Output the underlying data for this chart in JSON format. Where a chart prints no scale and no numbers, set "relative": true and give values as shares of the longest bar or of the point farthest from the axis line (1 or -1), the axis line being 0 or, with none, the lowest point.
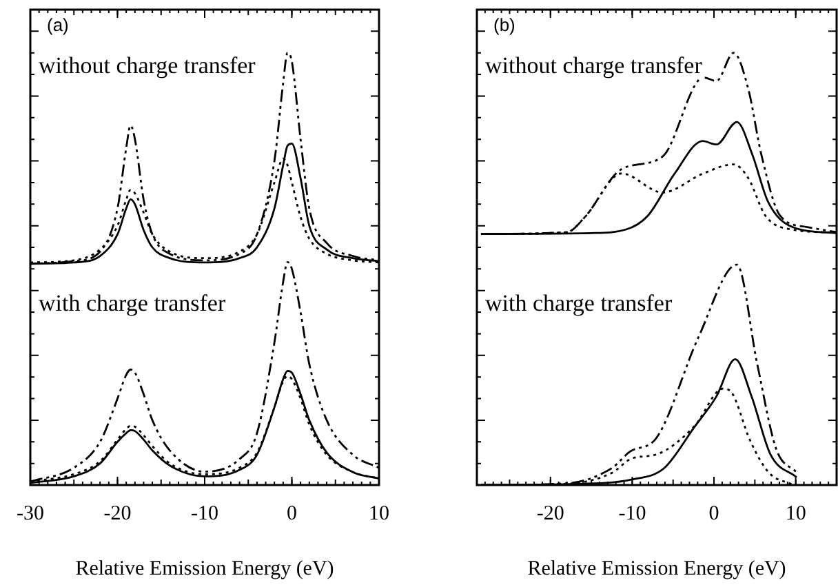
{
  "chart_data": [
    {
      "type": "line",
      "relative": true,
      "xlabel": "Relative Emission Energy (eV)",
      "xlim": [
        -30,
        10
      ],
      "xticks": [
        -30,
        -20,
        -10,
        0,
        10
      ],
      "grid": false,
      "legend": false,
      "tick_labels": "x",
      "marker": "none",
      "annotations": [
        "(a)",
        "without charge transfer",
        "with charge transfer"
      ],
      "x": [
        -30,
        -25,
        -22,
        -20,
        -19,
        -18.5,
        -18,
        -17,
        -16,
        -14,
        -10,
        -6,
        -4,
        -2,
        -1,
        -0.5,
        0,
        1,
        2,
        4,
        7,
        10
      ],
      "series": [
        {
          "color": "#000000",
          "line_style": "solid",
          "values": [
            0.512,
            0.515,
            0.53,
            0.58,
            0.64,
            0.661,
            0.65,
            0.59,
            0.55,
            0.525,
            0.515,
            0.525,
            0.55,
            0.64,
            0.74,
            0.785,
            0.79,
            0.71,
            0.6,
            0.545,
            0.525,
            0.518
          ]
        },
        {
          "color": "#000000",
          "line_style": "dotted",
          "values": [
            0.515,
            0.52,
            0.545,
            0.6,
            0.66,
            0.683,
            0.675,
            0.63,
            0.58,
            0.54,
            0.525,
            0.54,
            0.58,
            0.7,
            0.755,
            0.74,
            0.7,
            0.62,
            0.57,
            0.535,
            0.52,
            0.515
          ]
        },
        {
          "color": "#000000",
          "line_style": "dashed",
          "values": [
            0.512,
            0.518,
            0.54,
            0.64,
            0.78,
            0.832,
            0.8,
            0.66,
            0.58,
            0.535,
            0.52,
            0.535,
            0.58,
            0.75,
            0.93,
            1.0,
            0.98,
            0.8,
            0.64,
            0.56,
            0.53,
            0.52
          ]
        },
        {
          "color": "#000000",
          "line_style": "solid",
          "values": [
            0.005,
            0.02,
            0.05,
            0.1,
            0.12,
            0.127,
            0.125,
            0.105,
            0.08,
            0.045,
            0.02,
            0.035,
            0.07,
            0.18,
            0.245,
            0.264,
            0.26,
            0.21,
            0.15,
            0.075,
            0.03,
            0.015
          ]
        },
        {
          "color": "#000000",
          "line_style": "dotted",
          "values": [
            0.008,
            0.025,
            0.055,
            0.105,
            0.13,
            0.137,
            0.135,
            0.115,
            0.09,
            0.05,
            0.025,
            0.04,
            0.075,
            0.18,
            0.24,
            0.252,
            0.245,
            0.2,
            0.14,
            0.07,
            0.03,
            0.015
          ]
        },
        {
          "color": "#000000",
          "line_style": "dashed",
          "values": [
            0.008,
            0.04,
            0.1,
            0.2,
            0.255,
            0.267,
            0.26,
            0.21,
            0.15,
            0.08,
            0.031,
            0.06,
            0.12,
            0.33,
            0.47,
            0.516,
            0.5,
            0.4,
            0.28,
            0.15,
            0.07,
            0.04
          ]
        }
      ]
    },
    {
      "type": "line",
      "relative": true,
      "xlabel": "Relative Emission Energy (eV)",
      "xlim": [
        -29,
        15
      ],
      "xticks": [
        -20,
        -10,
        0,
        10
      ],
      "grid": false,
      "legend": false,
      "tick_labels": "x",
      "marker": "none",
      "annotations": [
        "(b)",
        "without charge transfer",
        "with charge transfer"
      ],
      "series": [
        {
          "color": "#000000",
          "line_style": "solid",
          "x": [
            -28.5,
            -15,
            -10.8,
            -8.1,
            -4.8,
            -1.4,
            0.3,
            2.8,
            4.7,
            6.6,
            9.6,
            15
          ],
          "values": [
            0.581,
            0.583,
            0.591,
            0.623,
            0.721,
            0.796,
            0.788,
            0.84,
            0.764,
            0.656,
            0.597,
            0.583
          ]
        },
        {
          "color": "#000000",
          "line_style": "dotted",
          "x": [
            -28.5,
            -18,
            -15.8,
            -11.3,
            -6.3,
            -1.3,
            2.4,
            4.2,
            6.3,
            9.6,
            15
          ],
          "values": [
            0.581,
            0.585,
            0.62,
            0.721,
            0.677,
            0.721,
            0.742,
            0.71,
            0.623,
            0.591,
            0.584
          ]
        },
        {
          "color": "#000000",
          "line_style": "dashed",
          "x": [
            -28.5,
            -18,
            -15.8,
            -11.3,
            -6.3,
            -1.3,
            0.3,
            2.4,
            4.2,
            5.8,
            8.1,
            11.4,
            15
          ],
          "values": [
            0.581,
            0.585,
            0.62,
            0.731,
            0.76,
            0.943,
            0.935,
            1.0,
            0.916,
            0.764,
            0.623,
            0.597,
            0.585
          ]
        },
        {
          "color": "#000000",
          "line_style": "solid",
          "x": [
            -28.5,
            -18,
            -10,
            -6.1,
            -2.4,
            0.3,
            2.6,
            4.6,
            6.9,
            10.1
          ],
          "values": [
            0,
            0.002,
            0.013,
            0.039,
            0.134,
            0.205,
            0.291,
            0.205,
            0.071,
            0.018
          ]
        },
        {
          "color": "#000000",
          "line_style": "dotted",
          "x": [
            -28.5,
            -18,
            -12.5,
            -10,
            -7,
            -2.4,
            1.1,
            2.2,
            4.4,
            6.7,
            9.6
          ],
          "values": [
            0,
            0.003,
            0.028,
            0.062,
            0.071,
            0.136,
            0.223,
            0.213,
            0.104,
            0.029,
            0.001
          ]
        },
        {
          "color": "#000000",
          "line_style": "dashed",
          "x": [
            -28.5,
            -18,
            -12.5,
            -10.3,
            -7,
            -1.9,
            2.8,
            5.3,
            7.6,
            10.1
          ],
          "values": [
            0,
            0.004,
            0.039,
            0.077,
            0.11,
            0.342,
            0.51,
            0.279,
            0.084,
            0.029
          ]
        }
      ]
    }
  ]
}
